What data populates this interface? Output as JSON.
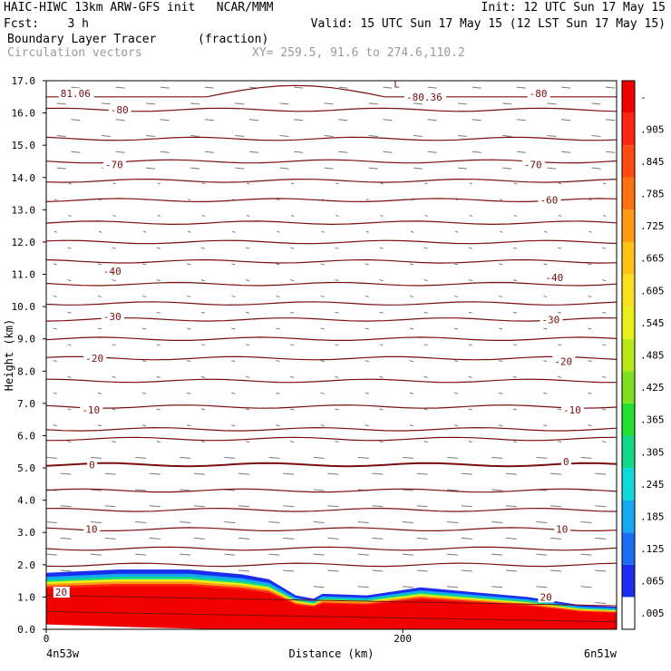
{
  "header": {
    "line1_left": "HAIC-HIWC 13km ARW-GFS init   NCAR/MMM",
    "line1_right": "Init: 12 UTC Sun 17 May 15",
    "line2_left": "Fcst:    3 h",
    "line2_right": "Valid: 15 UTC Sun 17 May 15 (12 LST Sun 17 May 15)",
    "line3_field": "Boundary Layer Tracer",
    "line3_units": "(fraction)",
    "line4_field": "Circulation vectors",
    "line4_xy": "XY= 259.5, 91.6 to 274.6,110.2"
  },
  "chart_data": {
    "type": "heatmap",
    "title": "Boundary Layer Tracer (fraction)",
    "xlabel": "Distance (km)",
    "ylabel": "Height (km)",
    "xlim": [
      0,
      320
    ],
    "ylim": [
      0,
      17
    ],
    "x_ticks": [
      {
        "value": 0,
        "label": "0"
      },
      {
        "value": 200,
        "label": "200"
      }
    ],
    "x_endpoints": {
      "left": "4n53w",
      "right": "6n51w"
    },
    "y_ticks": [
      0,
      1,
      2,
      3,
      4,
      5,
      6,
      7,
      8,
      9,
      10,
      11,
      12,
      13,
      14,
      15,
      16,
      17
    ],
    "y_tick_labels": [
      "0.0",
      "1.0",
      "2.0",
      "3.0",
      "4.0",
      "5.0",
      "6.0",
      "7.0",
      "8.0",
      "9.0",
      "10.0",
      "11.0",
      "12.0",
      "13.0",
      "14.0",
      "15.0",
      "16.0",
      "17.0"
    ],
    "colorbar": {
      "labels": [
        ".005",
        ".065",
        ".125",
        ".185",
        ".245",
        ".305",
        ".365",
        ".425",
        ".485",
        ".545",
        ".605",
        ".665",
        ".725",
        ".785",
        ".845",
        ".905",
        "-"
      ],
      "colors": [
        "#ffffff",
        "#1a2ef0",
        "#1a6cf5",
        "#13a8f0",
        "#10d8d8",
        "#12d88a",
        "#20e030",
        "#7ee01c",
        "#b8e818",
        "#e8f018",
        "#f8e020",
        "#ffc018",
        "#ff9a14",
        "#ff7010",
        "#ff4a10",
        "#ff2410",
        "#f00000"
      ]
    },
    "tracer_top_km": [
      {
        "x": 0,
        "top": 1.75
      },
      {
        "x": 40,
        "top": 1.85
      },
      {
        "x": 80,
        "top": 1.85
      },
      {
        "x": 110,
        "top": 1.7
      },
      {
        "x": 125,
        "top": 1.55
      },
      {
        "x": 140,
        "top": 1.05
      },
      {
        "x": 150,
        "top": 0.95
      },
      {
        "x": 155,
        "top": 1.1
      },
      {
        "x": 180,
        "top": 1.05
      },
      {
        "x": 210,
        "top": 1.3
      },
      {
        "x": 240,
        "top": 1.15
      },
      {
        "x": 270,
        "top": 1.0
      },
      {
        "x": 300,
        "top": 0.75
      },
      {
        "x": 320,
        "top": 0.7
      }
    ],
    "isotherm_labels": [
      {
        "label": "81.06",
        "x": 8,
        "y": 16.6
      },
      {
        "label": "-80.36",
        "x": 202,
        "y": 16.5
      },
      {
        "label": "L",
        "x": 195,
        "y": 16.9
      },
      {
        "label": "-80",
        "x": 36,
        "y": 16.1
      },
      {
        "label": "-80",
        "x": 271,
        "y": 16.6
      },
      {
        "label": "-70",
        "x": 33,
        "y": 14.4
      },
      {
        "label": "-70",
        "x": 268,
        "y": 14.4
      },
      {
        "label": "-60",
        "x": 277,
        "y": 13.3
      },
      {
        "label": "-40",
        "x": 32,
        "y": 11.1
      },
      {
        "label": "-40",
        "x": 280,
        "y": 10.9
      },
      {
        "label": "-30",
        "x": 32,
        "y": 9.7
      },
      {
        "label": "-30",
        "x": 278,
        "y": 9.6
      },
      {
        "label": "-20",
        "x": 22,
        "y": 8.4
      },
      {
        "label": "-20",
        "x": 285,
        "y": 8.3
      },
      {
        "label": "-10",
        "x": 20,
        "y": 6.8
      },
      {
        "label": "-10",
        "x": 290,
        "y": 6.8
      },
      {
        "label": "0",
        "x": 24,
        "y": 5.1
      },
      {
        "label": "0",
        "x": 290,
        "y": 5.2
      },
      {
        "label": "10",
        "x": 22,
        "y": 3.1
      },
      {
        "label": "10",
        "x": 286,
        "y": 3.1
      },
      {
        "label": "20",
        "x": 5,
        "y": 1.15
      },
      {
        "label": "20",
        "x": 277,
        "y": 1.0
      }
    ],
    "contour_levels_km": [
      16.5,
      16.1,
      15.2,
      14.5,
      13.9,
      13.3,
      12.6,
      12.0,
      11.4,
      10.7,
      10.1,
      9.6,
      9.0,
      8.4,
      7.7,
      6.9,
      6.2,
      5.9,
      5.1,
      4.3,
      3.7,
      3.1,
      2.5,
      2.0
    ]
  }
}
